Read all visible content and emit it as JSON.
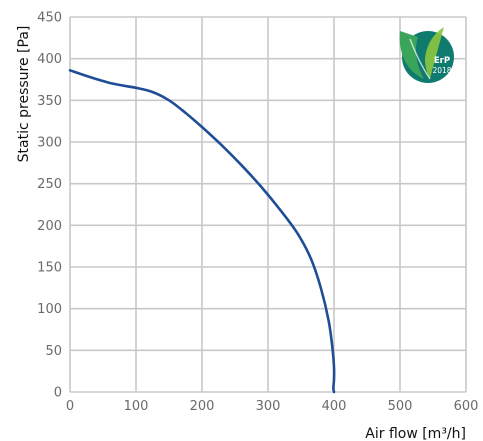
{
  "chart_data": {
    "type": "line",
    "xlabel": "Air flow [m³/h]",
    "ylabel": "Static pressure [Pa]",
    "xlim": [
      0,
      600
    ],
    "ylim": [
      0,
      450
    ],
    "x_ticks": [
      "0",
      "100",
      "200",
      "300",
      "400",
      "500",
      "600"
    ],
    "y_ticks": [
      "0",
      "50",
      "100",
      "150",
      "200",
      "250",
      "300",
      "350",
      "400",
      "450"
    ],
    "grid": true,
    "series": [
      {
        "color": "#1f4e97",
        "x": [
          0,
          30,
          65,
          100,
          125,
          150,
          175,
          200,
          230,
          260,
          290,
          320,
          345,
          365,
          380,
          392,
          398,
          400,
          400,
          399,
          400
        ],
        "y": [
          386,
          378,
          370,
          365,
          360,
          350,
          335,
          318,
          296,
          272,
          246,
          217,
          190,
          160,
          125,
          85,
          50,
          30,
          15,
          5,
          0
        ]
      }
    ]
  },
  "logo": {
    "name": "erp-2018-logo",
    "text_top": "ErP",
    "text_bottom": "2018",
    "colors": {
      "circle": "#0f7a6e",
      "leaf": "#3aa55a",
      "leaf_light": "#8cc63f"
    }
  }
}
